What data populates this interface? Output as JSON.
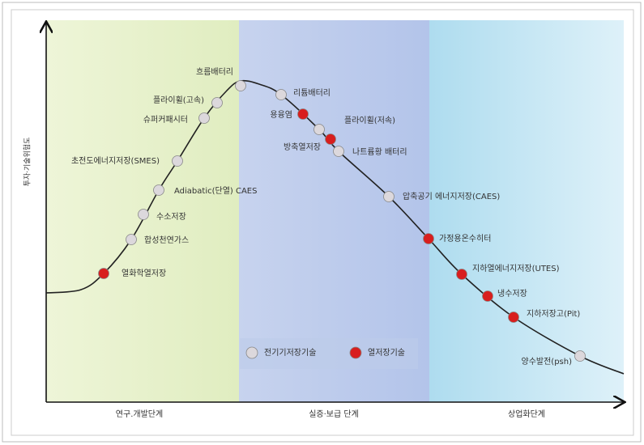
{
  "y_axis_label": "투자·기술위험도",
  "phases": [
    "연구.개발단계",
    "실증·보급 단계",
    "상업화단계"
  ],
  "legend": [
    {
      "label": "전기기저장기술",
      "color": "#dcd8dc"
    },
    {
      "label": "열저장기술",
      "color": "#d81e1e"
    }
  ],
  "nodes": [
    {
      "label": "열화학열저장",
      "color": "#d81e1e"
    },
    {
      "label": "합성천연가스",
      "color": "#dcd8dc"
    },
    {
      "label": "수소저장",
      "color": "#dcd8dc"
    },
    {
      "label": "Adiabatic(단열) CAES",
      "color": "#dcd8dc"
    },
    {
      "label": "초전도에너지저장(SMES)",
      "color": "#dcd8dc"
    },
    {
      "label": "슈퍼커패시터",
      "color": "#dcd8dc"
    },
    {
      "label": "플라이휠(고속)",
      "color": "#dcd8dc"
    },
    {
      "label": "흐름배터리",
      "color": "#dcd8dc"
    },
    {
      "label": "리튬배터리",
      "color": "#dcd8dc"
    },
    {
      "label": "용융염",
      "color": "#d81e1e"
    },
    {
      "label": "플라이휠(저속)",
      "color": "#dcd8dc"
    },
    {
      "label": "방축열저장",
      "color": "#d81e1e"
    },
    {
      "label": "나트륨황 배터리",
      "color": "#dcd8dc"
    },
    {
      "label": "압축공기 에너지저장(CAES)",
      "color": "#dcd8dc"
    },
    {
      "label": "가정용온수히터",
      "color": "#d81e1e"
    },
    {
      "label": "지하열에너지저장(UTES)",
      "color": "#d81e1e"
    },
    {
      "label": "냉수저장",
      "color": "#d81e1e"
    },
    {
      "label": "지하저장고(Pit)",
      "color": "#d81e1e"
    },
    {
      "label": "양수발전(psh)",
      "color": "#dcd8dc"
    }
  ]
}
